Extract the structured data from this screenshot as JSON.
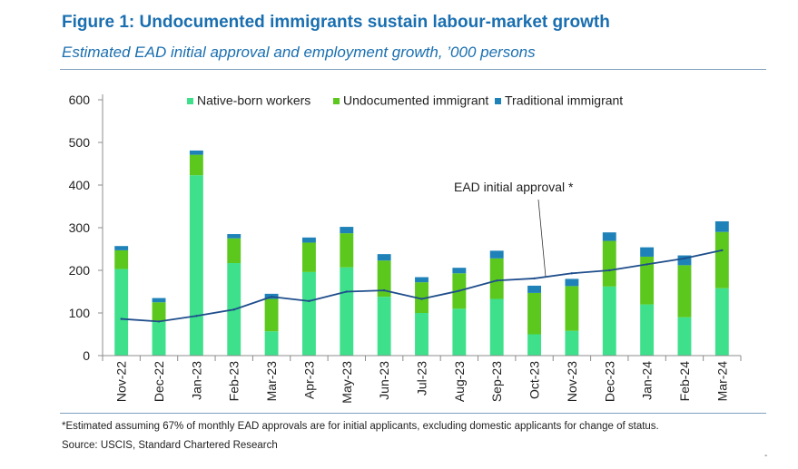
{
  "figure": {
    "title": "Figure 1: Undocumented immigrants sustain labour-market growth",
    "subtitle": "Estimated EAD initial approval and employment growth, ’000 persons",
    "footnote": "*Estimated assuming 67% of monthly EAD approvals are for initial applicants, excluding domestic applicants for change of status.",
    "source": "Source: USCIS, Standard Chartered Research",
    "corner_mark": "-"
  },
  "colors": {
    "native": "#3ee08c",
    "undocumented": "#5cc81e",
    "traditional": "#1e82b8",
    "line": "#1f4e8c",
    "axis": "#8c8c8c",
    "text": "#222222"
  },
  "chart_data": {
    "type": "bar",
    "stacked": true,
    "categories": [
      "Nov-22",
      "Dec-22",
      "Jan-23",
      "Feb-23",
      "Mar-23",
      "Apr-23",
      "May-23",
      "Jun-23",
      "Jul-23",
      "Aug-23",
      "Sep-23",
      "Oct-23",
      "Nov-23",
      "Dec-23",
      "Jan-24",
      "Feb-24",
      "Mar-24"
    ],
    "ylim": [
      0,
      600
    ],
    "yticks": [
      0,
      100,
      200,
      300,
      400,
      500,
      600
    ],
    "grid": false,
    "legend_position": "top",
    "series": [
      {
        "name": "Native-born workers",
        "color_key": "native",
        "values": [
          203,
          80,
          423,
          217,
          57,
          196,
          207,
          138,
          100,
          110,
          133,
          50,
          58,
          162,
          120,
          90,
          158
        ]
      },
      {
        "name": "Undocumented immigrant",
        "color_key": "undocumented",
        "values": [
          44,
          45,
          48,
          58,
          76,
          69,
          80,
          85,
          72,
          83,
          95,
          97,
          105,
          107,
          112,
          122,
          132
        ]
      },
      {
        "name": "Traditional immigrant",
        "color_key": "traditional",
        "values": [
          10,
          10,
          10,
          10,
          12,
          12,
          15,
          15,
          12,
          13,
          18,
          17,
          17,
          20,
          22,
          23,
          25
        ]
      }
    ],
    "line": {
      "name": "EAD initial approval",
      "annotation": "EAD initial approval *",
      "color_key": "line",
      "values": [
        86,
        80,
        93,
        108,
        138,
        128,
        150,
        153,
        133,
        152,
        176,
        181,
        193,
        200,
        214,
        228,
        247
      ]
    }
  }
}
